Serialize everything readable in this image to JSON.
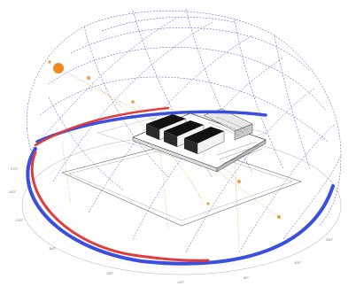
{
  "diagram": {
    "colors": {
      "dome_grid": "#3b4fd8",
      "sun_path": "#e6a03a",
      "sun_marker": "#f08a1e",
      "summer_arc": "#e23b3b",
      "winter_arc": "#3a4fe0",
      "building_dark": "#111111",
      "site_outline": "#666666"
    },
    "compass_ticks": [
      "270°",
      "240°",
      "210°",
      "180°",
      "150°",
      "120°",
      "90°",
      "300°",
      "330°"
    ],
    "sun_markers": 6,
    "building_blocks": 3,
    "icons": [
      "sun-icon"
    ]
  }
}
